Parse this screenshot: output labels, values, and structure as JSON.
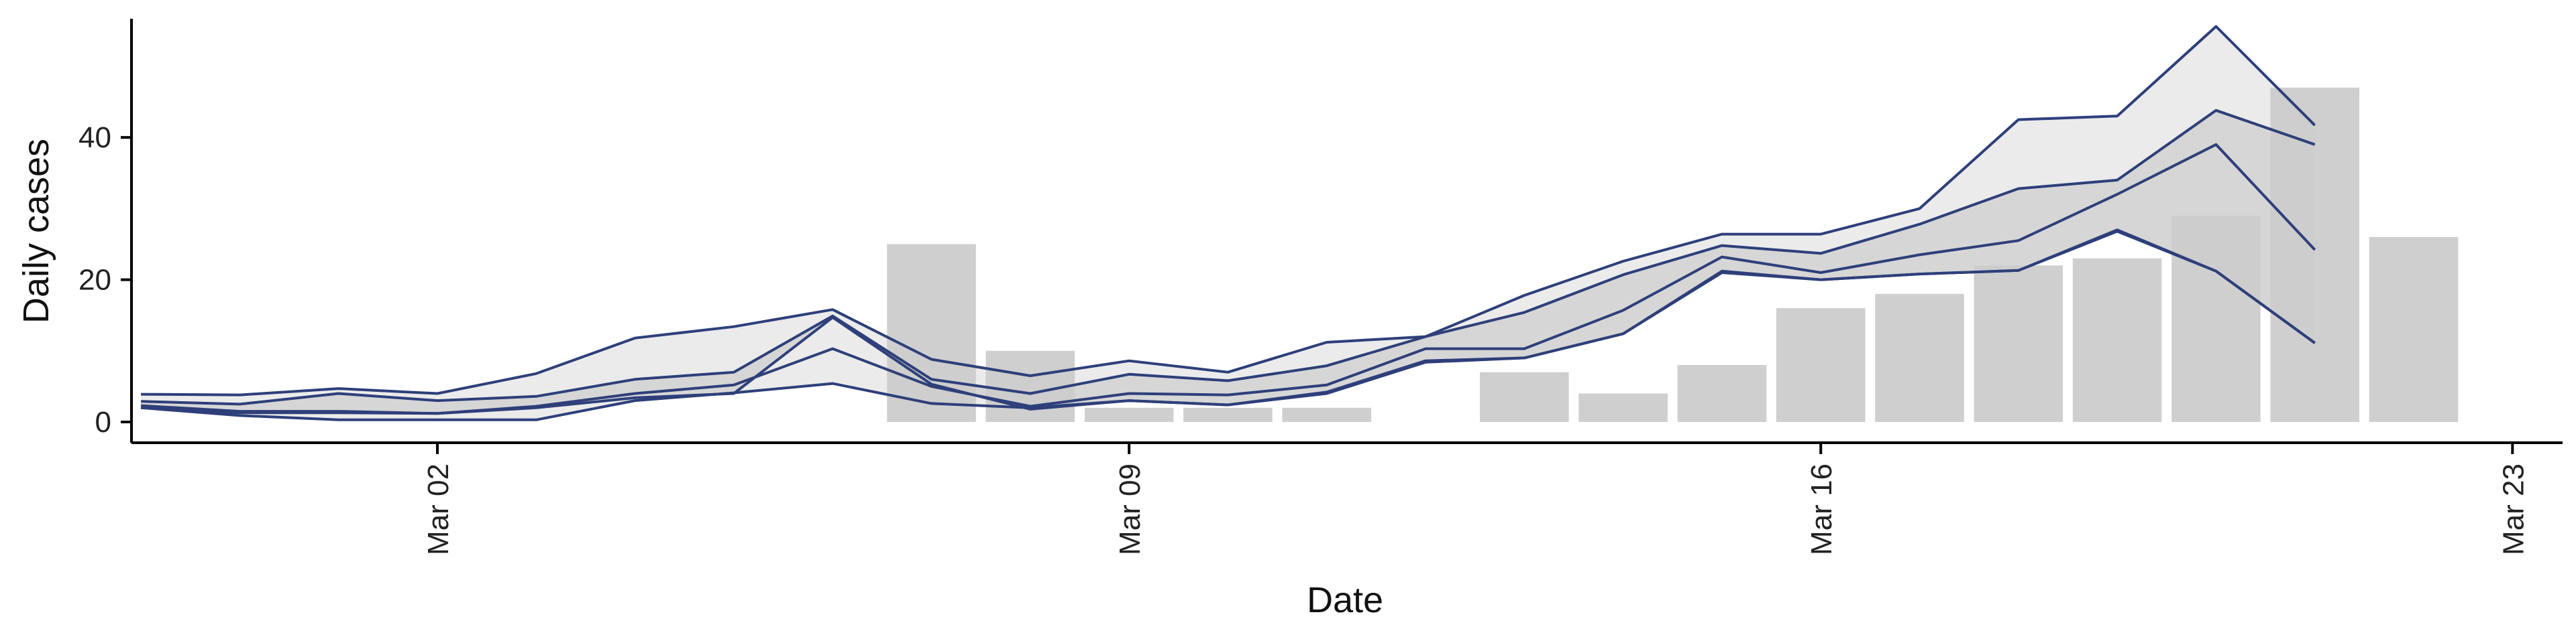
{
  "chart_data": {
    "type": "bar",
    "title": "",
    "xlabel": "Date",
    "ylabel": "Daily cases",
    "ylim": [
      0,
      58
    ],
    "yticks": [
      0,
      20,
      40
    ],
    "x_tick_labels": [
      "Mar 02",
      "Mar 09",
      "Mar 16",
      "Mar 23"
    ],
    "x_tick_dates": [
      "2020-03-02",
      "2020-03-09",
      "2020-03-16",
      "2020-03-23"
    ],
    "x_range": [
      "2020-02-26",
      "2020-03-24"
    ],
    "grid": false,
    "bar_color": "#cccccc",
    "line_color": "#2e3f7a",
    "band_outer_color": "#ebebeb",
    "band_inner_color": "#d2d2d2",
    "bars": {
      "dates": [
        "2020-03-05",
        "2020-03-06",
        "2020-03-07",
        "2020-03-08",
        "2020-03-09",
        "2020-03-10",
        "2020-03-11",
        "2020-03-12",
        "2020-03-13",
        "2020-03-14",
        "2020-03-15",
        "2020-03-16",
        "2020-03-17",
        "2020-03-18",
        "2020-03-19",
        "2020-03-20",
        "2020-03-21",
        "2020-03-22"
      ],
      "values": [
        0,
        0,
        25,
        10,
        2,
        2,
        2,
        0,
        7,
        4,
        8,
        16,
        18,
        22,
        23,
        29,
        47,
        26
      ]
    },
    "lines": {
      "dates": [
        "2020-02-28",
        "2020-02-29",
        "2020-03-01",
        "2020-03-02",
        "2020-03-03",
        "2020-03-04",
        "2020-03-05",
        "2020-03-06",
        "2020-03-07",
        "2020-03-08",
        "2020-03-09",
        "2020-03-10",
        "2020-03-11",
        "2020-03-12",
        "2020-03-13",
        "2020-03-14",
        "2020-03-15",
        "2020-03-16",
        "2020-03-17",
        "2020-03-18",
        "2020-03-19",
        "2020-03-20",
        "2020-03-21",
        "2020-03-22"
      ],
      "upper_outer": [
        3.9,
        3.8,
        4.7,
        4.0,
        6.8,
        11.8,
        13.4,
        15.8,
        8.8,
        6.5,
        8.6,
        7.0,
        11.2,
        12.0,
        17.8,
        22.6,
        26.4,
        26.4,
        30.0,
        42.5,
        43.0,
        55.6,
        41.7,
        null
      ],
      "upper_inner": [
        2.9,
        2.5,
        4.0,
        3.0,
        3.6,
        6.0,
        7.0,
        14.9,
        6.0,
        4.0,
        6.7,
        5.8,
        7.9,
        12.0,
        15.4,
        20.7,
        24.8,
        23.7,
        27.8,
        32.8,
        34.0,
        43.8,
        39.0,
        null
      ],
      "median": [
        2.3,
        1.5,
        1.5,
        1.2,
        2.2,
        4.0,
        5.2,
        10.3,
        5.0,
        2.2,
        4.0,
        3.8,
        5.2,
        10.3,
        10.3,
        15.7,
        23.2,
        21.0,
        23.5,
        25.5,
        32.0,
        39.0,
        24.2,
        null
      ],
      "lower_inner": [
        2.0,
        1.3,
        1.3,
        1.2,
        2.0,
        3.4,
        4.0,
        14.7,
        5.3,
        1.8,
        3.0,
        2.4,
        4.2,
        8.6,
        9.0,
        12.4,
        21.2,
        20.0,
        20.8,
        21.3,
        27.0,
        21.2,
        11.1,
        null
      ],
      "lower_outer": [
        2.0,
        0.9,
        0.3,
        0.3,
        0.3,
        3.0,
        4.1,
        5.4,
        2.6,
        2.0,
        3.0,
        2.4,
        4.0,
        8.4,
        9.0,
        12.4,
        21.0,
        20.0,
        20.8,
        21.3,
        26.8,
        21.2,
        11.1,
        null
      ]
    }
  }
}
